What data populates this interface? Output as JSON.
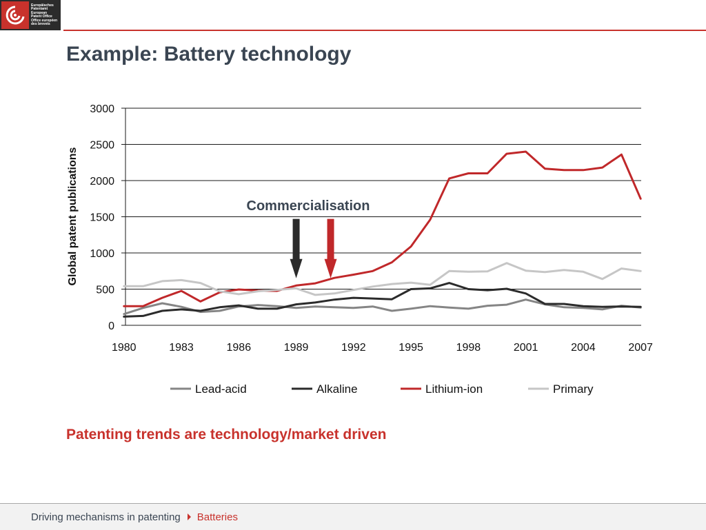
{
  "header": {
    "logo_lines": [
      "Europäisches",
      "Patentamt",
      "European",
      "Patent Office",
      "Office européen",
      "des brevets"
    ],
    "title": "Example: Battery technology"
  },
  "subheading": "Patenting trends are technology/market driven",
  "footer": {
    "breadcrumb_root": "Driving mechanisms in patenting",
    "breadcrumb_current": "Batteries"
  },
  "colors": {
    "accent_red": "#c8322c",
    "title_gray": "#3a4552",
    "lead_acid": "#858585",
    "alkaline": "#2b2b2b",
    "lithium_ion": "#c0282a",
    "primary": "#c6c6c6"
  },
  "icons": {
    "logo": "epo-logo-icon",
    "breadcrumb_separator": "triangle-right-icon",
    "arrow": "arrow-down-icon"
  },
  "chart_data": {
    "type": "line",
    "title": "",
    "xlabel": "",
    "ylabel": "Global patent publications",
    "x": [
      1980,
      1981,
      1982,
      1983,
      1984,
      1985,
      1986,
      1987,
      1988,
      1989,
      1990,
      1991,
      1992,
      1993,
      1994,
      1995,
      1996,
      1997,
      1998,
      1999,
      2000,
      2001,
      2002,
      2003,
      2004,
      2005,
      2006,
      2007
    ],
    "x_ticks": [
      1980,
      1983,
      1986,
      1989,
      1992,
      1995,
      1998,
      2001,
      2004,
      2007
    ],
    "ylim": [
      0,
      3000
    ],
    "y_ticks": [
      0,
      500,
      1000,
      1500,
      2000,
      2500,
      3000
    ],
    "grid": "horizontal",
    "legend": "bottom",
    "series": [
      {
        "name": "Lead-acid",
        "values": [
          155,
          240,
          305,
          255,
          185,
          200,
          260,
          280,
          265,
          240,
          260,
          250,
          240,
          260,
          200,
          230,
          265,
          245,
          230,
          270,
          285,
          355,
          290,
          250,
          240,
          220,
          270,
          245
        ]
      },
      {
        "name": "Alkaline",
        "values": [
          120,
          130,
          200,
          220,
          200,
          250,
          275,
          230,
          230,
          290,
          315,
          355,
          380,
          370,
          360,
          500,
          510,
          585,
          500,
          485,
          505,
          440,
          295,
          295,
          265,
          255,
          260,
          255
        ]
      },
      {
        "name": "Lithium-ion",
        "values": [
          265,
          265,
          380,
          475,
          330,
          455,
          495,
          480,
          475,
          550,
          580,
          655,
          700,
          750,
          870,
          1090,
          1460,
          2030,
          2100,
          2100,
          2370,
          2400,
          2165,
          2145,
          2145,
          2180,
          2360,
          1750
        ]
      },
      {
        "name": "Primary",
        "values": [
          540,
          540,
          610,
          625,
          585,
          470,
          430,
          470,
          490,
          510,
          420,
          440,
          490,
          535,
          570,
          590,
          560,
          750,
          740,
          745,
          860,
          755,
          735,
          765,
          740,
          640,
          785,
          750
        ]
      }
    ],
    "annotations": [
      {
        "text": "Commercialisation"
      },
      {
        "label": "Alkaline commercialisation arrow",
        "x": 1989.0,
        "y_from": 1470,
        "y_to": 650,
        "series": "Alkaline"
      },
      {
        "label": "Lithium-ion commercialisation arrow",
        "x": 1990.8,
        "y_from": 1470,
        "y_to": 650,
        "series": "Lithium-ion"
      }
    ]
  }
}
